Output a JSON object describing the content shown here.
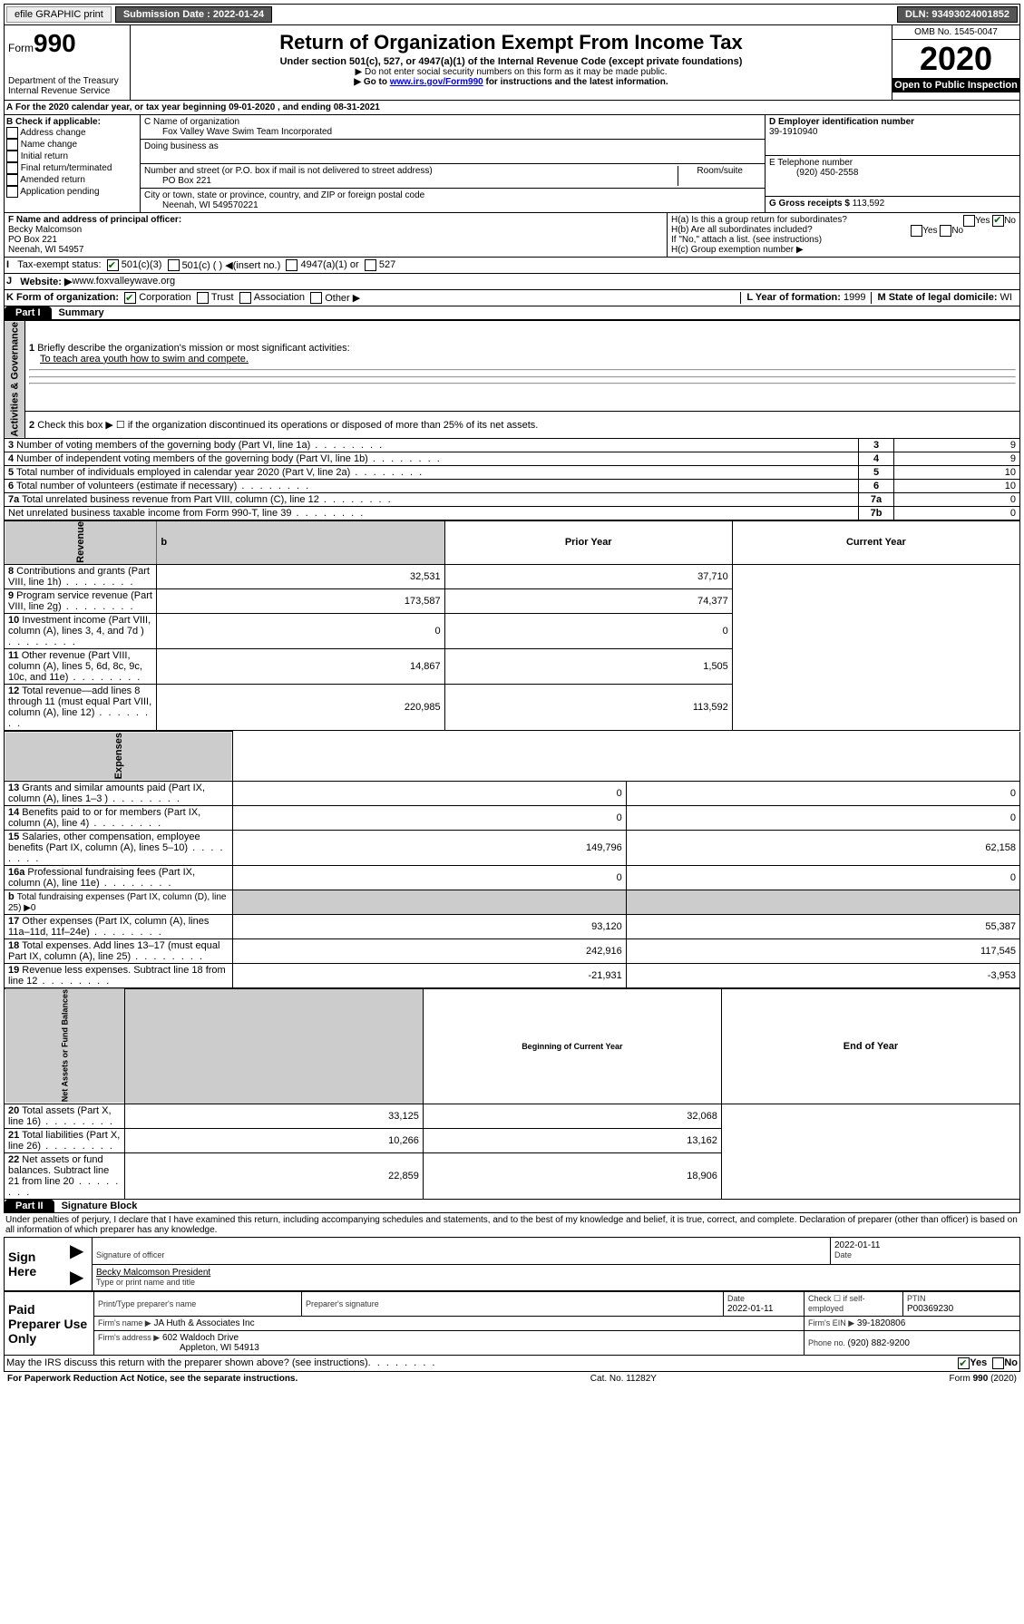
{
  "topbar": {
    "efile": "efile GRAPHIC print",
    "sub_lbl": "Submission Date : 2022-01-24",
    "dln": "DLN: 93493024001852"
  },
  "hdr": {
    "form": "Form",
    "num": "990",
    "dept": "Department of the Treasury\nInternal Revenue Service",
    "title": "Return of Organization Exempt From Income Tax",
    "sub1": "Under section 501(c), 527, or 4947(a)(1) of the Internal Revenue Code (except private foundations)",
    "sub2": "▶ Do not enter social security numbers on this form as it may be made public.",
    "sub3_a": "▶ Go to ",
    "sub3_link": "www.irs.gov/Form990",
    "sub3_b": " for instructions and the latest information.",
    "omb": "OMB No. 1545-0047",
    "year": "2020",
    "open": "Open to Public Inspection"
  },
  "a": {
    "text": "For the 2020 calendar year, or tax year beginning 09-01-2020     , and ending 08-31-2021"
  },
  "b": {
    "lbl": "B Check if applicable:",
    "items": [
      "Address change",
      "Name change",
      "Initial return",
      "Final return/terminated",
      "Amended return",
      "Application pending"
    ]
  },
  "c": {
    "name_lbl": "C Name of organization",
    "name": "Fox Valley Wave Swim Team Incorporated",
    "dba_lbl": "Doing business as",
    "addr_lbl": "Number and street (or P.O. box if mail is not delivered to street address)",
    "room": "Room/suite",
    "addr": "PO Box 221",
    "city_lbl": "City or town, state or province, country, and ZIP or foreign postal code",
    "city": "Neenah, WI  549570221"
  },
  "d": {
    "ein_lbl": "D Employer identification number",
    "ein": "39-1910940",
    "tel_lbl": "E Telephone number",
    "tel": "(920) 450-2558",
    "gross_lbl": "G Gross receipts $ ",
    "gross": "113,592"
  },
  "f": {
    "lbl": "F  Name and address of principal officer:",
    "name": "Becky Malcomson",
    "addr1": "PO Box 221",
    "addr2": "Neenah, WI  54957"
  },
  "h": {
    "a": "H(a)  Is this a group return for subordinates?",
    "b": "H(b)  Are all subordinates included?",
    "b2": "If \"No,\" attach a list. (see instructions)",
    "c": "H(c)  Group exemption number ▶"
  },
  "i": {
    "lbl": "Tax-exempt status:",
    "opts": [
      "501(c)(3)",
      "501(c) (  ) ◀(insert no.)",
      "4947(a)(1) or",
      "527"
    ]
  },
  "j": {
    "lbl": "Website: ▶  ",
    "url": "www.foxvalleywave.org"
  },
  "k": {
    "lbl": "K Form of organization:",
    "opts": [
      "Corporation",
      "Trust",
      "Association",
      "Other ▶"
    ]
  },
  "l": {
    "lbl": "L Year of formation: ",
    "val": "1999"
  },
  "m": {
    "lbl": "M State of legal domicile: ",
    "val": "WI"
  },
  "p1": {
    "hdr": "Part I",
    "title": "Summary"
  },
  "s1": {
    "l1": "Briefly describe the organization's mission or most significant activities:",
    "mission": "To teach area youth how to swim and compete.",
    "l2": "Check this box ▶ ☐  if the organization discontinued its operations or disposed of more than 25% of its net assets.",
    "rows": [
      {
        "n": "3",
        "t": "Number of voting members of the governing body (Part VI, line 1a)",
        "r": "3",
        "v": "9"
      },
      {
        "n": "4",
        "t": "Number of independent voting members of the governing body (Part VI, line 1b)",
        "r": "4",
        "v": "9"
      },
      {
        "n": "5",
        "t": "Total number of individuals employed in calendar year 2020 (Part V, line 2a)",
        "r": "5",
        "v": "10"
      },
      {
        "n": "6",
        "t": "Total number of volunteers (estimate if necessary)",
        "r": "6",
        "v": "10"
      },
      {
        "n": "7a",
        "t": "Total unrelated business revenue from Part VIII, column (C), line 12",
        "r": "7a",
        "v": "0"
      },
      {
        "n": "",
        "t": "Net unrelated business taxable income from Form 990-T, line 39",
        "r": "7b",
        "v": "0"
      }
    ]
  },
  "rev": {
    "hdr_prior": "Prior Year",
    "hdr_curr": "Current Year",
    "rows": [
      {
        "n": "8",
        "t": "Contributions and grants (Part VIII, line 1h)",
        "p": "32,531",
        "c": "37,710"
      },
      {
        "n": "9",
        "t": "Program service revenue (Part VIII, line 2g)",
        "p": "173,587",
        "c": "74,377"
      },
      {
        "n": "10",
        "t": "Investment income (Part VIII, column (A), lines 3, 4, and 7d )",
        "p": "0",
        "c": "0"
      },
      {
        "n": "11",
        "t": "Other revenue (Part VIII, column (A), lines 5, 6d, 8c, 9c, 10c, and 11e)",
        "p": "14,867",
        "c": "1,505"
      },
      {
        "n": "12",
        "t": "Total revenue—add lines 8 through 11 (must equal Part VIII, column (A), line 12)",
        "p": "220,985",
        "c": "113,592"
      }
    ]
  },
  "exp": {
    "rows": [
      {
        "n": "13",
        "t": "Grants and similar amounts paid (Part IX, column (A), lines 1–3 )",
        "p": "0",
        "c": "0"
      },
      {
        "n": "14",
        "t": "Benefits paid to or for members (Part IX, column (A), line 4)",
        "p": "0",
        "c": "0"
      },
      {
        "n": "15",
        "t": "Salaries, other compensation, employee benefits (Part IX, column (A), lines 5–10)",
        "p": "149,796",
        "c": "62,158"
      },
      {
        "n": "16a",
        "t": "Professional fundraising fees (Part IX, column (A), line 11e)",
        "p": "0",
        "c": "0"
      }
    ],
    "b": {
      "t": "Total fundraising expenses (Part IX, column (D), line 25) ▶0"
    },
    "rows2": [
      {
        "n": "17",
        "t": "Other expenses (Part IX, column (A), lines 11a–11d, 11f–24e)",
        "p": "93,120",
        "c": "55,387"
      },
      {
        "n": "18",
        "t": "Total expenses. Add lines 13–17 (must equal Part IX, column (A), line 25)",
        "p": "242,916",
        "c": "117,545"
      },
      {
        "n": "19",
        "t": "Revenue less expenses. Subtract line 18 from line 12",
        "p": "-21,931",
        "c": "-3,953"
      }
    ]
  },
  "net": {
    "hdr_beg": "Beginning of Current Year",
    "hdr_end": "End of Year",
    "rows": [
      {
        "n": "20",
        "t": "Total assets (Part X, line 16)",
        "p": "33,125",
        "c": "32,068"
      },
      {
        "n": "21",
        "t": "Total liabilities (Part X, line 26)",
        "p": "10,266",
        "c": "13,162"
      },
      {
        "n": "22",
        "t": "Net assets or fund balances. Subtract line 21 from line 20",
        "p": "22,859",
        "c": "18,906"
      }
    ]
  },
  "p2": {
    "hdr": "Part II",
    "title": "Signature Block",
    "decl": "Under penalties of perjury, I declare that I have examined this return, including accompanying schedules and statements, and to the best of my knowledge and belief, it is true, correct, and complete. Declaration of preparer (other than officer) is based on all information of which preparer has any knowledge."
  },
  "sign": {
    "here": "Sign Here",
    "sig_lbl": "Signature of officer",
    "date": "2022-01-11",
    "date_lbl": "Date",
    "name": "Becky Malcomson President",
    "name_lbl": "Type or print name and title"
  },
  "paid": {
    "lbl": "Paid Preparer Use Only",
    "h1": "Print/Type preparer's name",
    "h2": "Preparer's signature",
    "h3": "Date",
    "h4": "Check ☐ if self-employed",
    "h5": "PTIN",
    "date": "2022-01-11",
    "ptin": "P00369230",
    "firm_lbl": "Firm's name    ▶",
    "firm": "JA Huth & Associates Inc",
    "ein_lbl": "Firm's EIN ▶",
    "ein": "39-1820806",
    "addr_lbl": "Firm's address ▶",
    "addr1": "602 Waldoch Drive",
    "addr2": "Appleton, WI  54913",
    "phone_lbl": "Phone no. ",
    "phone": "(920) 882-9200"
  },
  "discuss": "May the IRS discuss this return with the preparer shown above? (see instructions)",
  "foot": {
    "l": "For Paperwork Reduction Act Notice, see the separate instructions.",
    "c": "Cat. No. 11282Y",
    "r": "Form 990 (2020)"
  }
}
